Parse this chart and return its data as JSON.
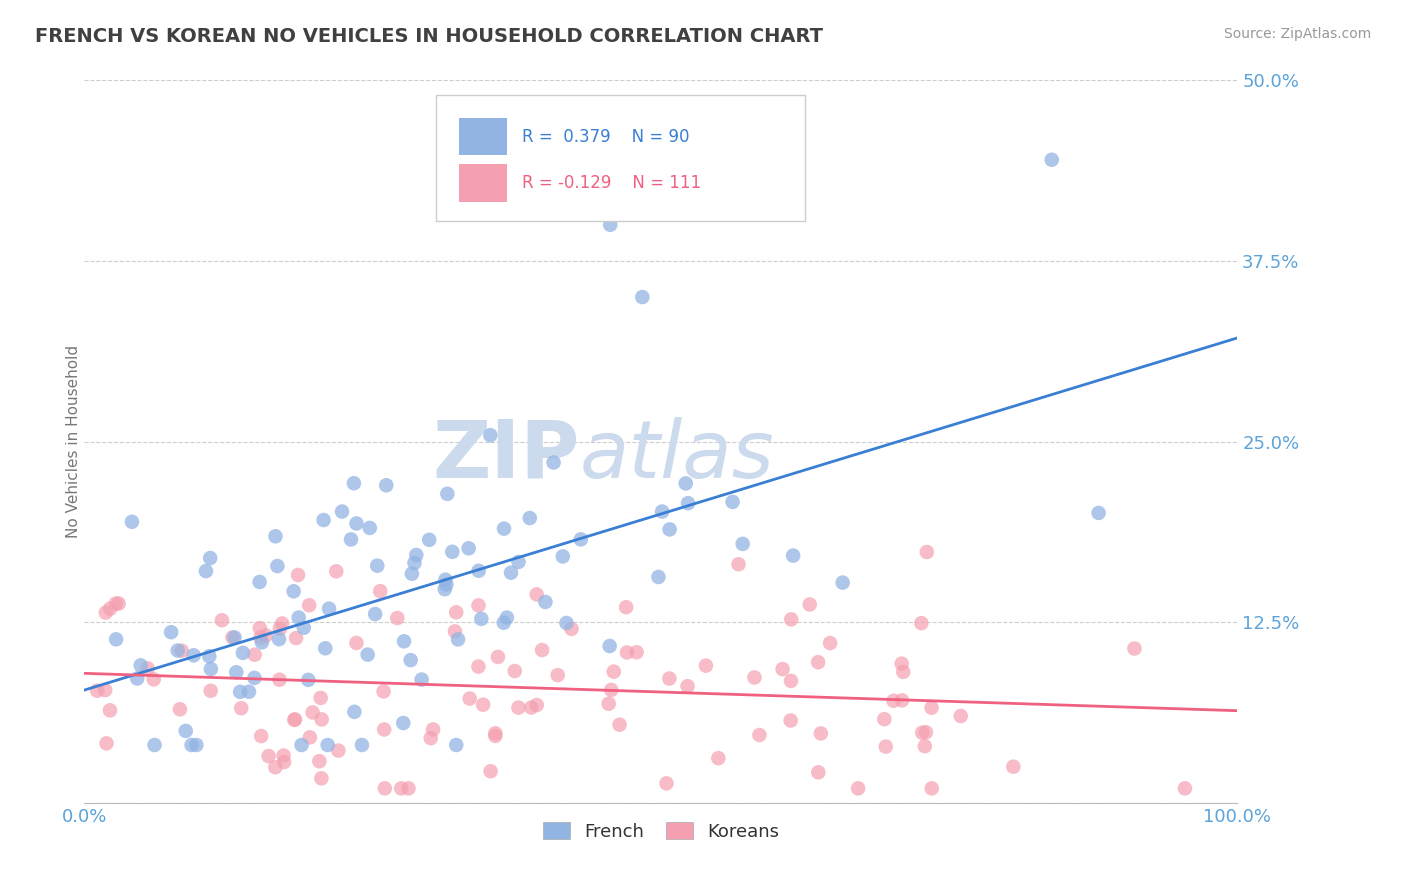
{
  "title": "FRENCH VS KOREAN NO VEHICLES IN HOUSEHOLD CORRELATION CHART",
  "source": "Source: ZipAtlas.com",
  "ylabel": "No Vehicles in Household",
  "french_R": 0.379,
  "french_N": 90,
  "korean_R": -0.129,
  "korean_N": 111,
  "french_color": "#92b4e3",
  "korean_color": "#f4a0b0",
  "french_line_color": "#3a7fd4",
  "korean_line_color": "#f06080",
  "title_color": "#404040",
  "axis_color": "#5ba3d9",
  "grid_color": "#c8c8c8",
  "bg_color": "#ffffff",
  "watermark_color": "#ccdaee",
  "xlim": [
    0,
    1.0
  ],
  "ylim": [
    0,
    0.5
  ]
}
